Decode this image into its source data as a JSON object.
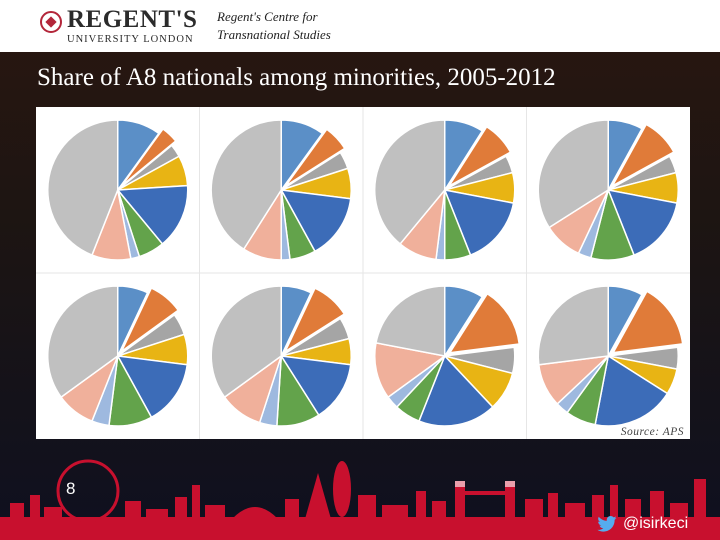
{
  "header": {
    "logo_line1": "REGENT'S",
    "logo_line2": "UNIVERSITY LONDON",
    "centre_name_line1": "Regent's Centre for",
    "centre_name_line2": "Transnational Studies"
  },
  "slide": {
    "title": "Share of A8 nationals among minorities, 2005-2012",
    "source": "Source: APS",
    "number": "8",
    "twitter_handle": "@isirkeci"
  },
  "colors": {
    "slice_palette": [
      "#5b8fc7",
      "#e07b39",
      "#a5a5a5",
      "#e8b414",
      "#3c6cb8",
      "#63a34b",
      "#9eb9df",
      "#f0b09b",
      "#c0c0c0"
    ],
    "accent_red": "#c8102e"
  },
  "icons": {
    "crest": "regents-crest-icon",
    "twitter": "twitter-bird-icon"
  },
  "chart_data": {
    "type": "pie",
    "title": "Share of A8 nationals among minorities, 2005-2012",
    "note": "Source: APS",
    "charts": [
      {
        "values": [
          10,
          4,
          3,
          7,
          15,
          6,
          2,
          9,
          44
        ],
        "exploded": [
          1
        ]
      },
      {
        "values": [
          10,
          6,
          4,
          7,
          15,
          6,
          2,
          9,
          41
        ],
        "exploded": [
          1
        ]
      },
      {
        "values": [
          9,
          8,
          4,
          7,
          16,
          6,
          2,
          9,
          39
        ],
        "exploded": [
          1
        ]
      },
      {
        "values": [
          8,
          9,
          4,
          7,
          16,
          10,
          3,
          9,
          34
        ],
        "exploded": [
          1
        ]
      },
      {
        "values": [
          7,
          8,
          5,
          7,
          15,
          10,
          4,
          9,
          35
        ],
        "exploded": [
          1
        ]
      },
      {
        "values": [
          7,
          9,
          5,
          6,
          14,
          10,
          4,
          10,
          35
        ],
        "exploded": [
          1
        ]
      },
      {
        "values": [
          9,
          14,
          6,
          9,
          18,
          6,
          3,
          13,
          22
        ],
        "exploded": [
          1
        ]
      },
      {
        "values": [
          8,
          15,
          5,
          6,
          19,
          7,
          3,
          10,
          27
        ],
        "exploded": [
          1
        ]
      }
    ]
  }
}
